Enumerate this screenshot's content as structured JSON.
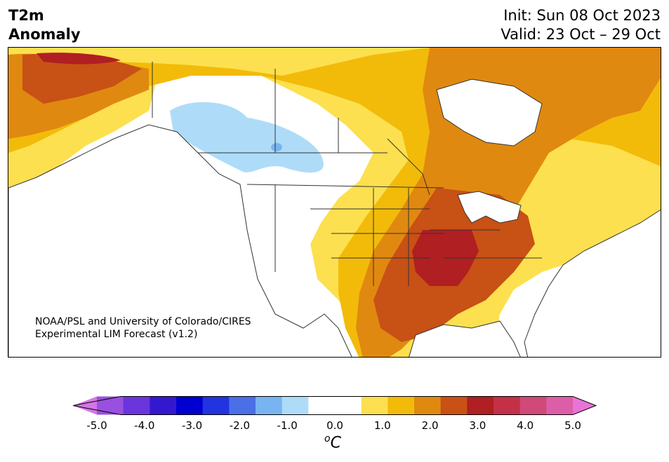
{
  "title": {
    "variable": "T2m",
    "subtitle": "Anomaly",
    "init": "Init: Sun 08 Oct 2023",
    "valid": "Valid: 23 Oct – 29 Oct"
  },
  "credit": {
    "line1": "NOAA/PSL and University of Colorado/CIRES",
    "line2": "Experimental LIM Forecast (v1.2)"
  },
  "colorbar": {
    "unit_sup": "o",
    "unit": "C",
    "ticks": [
      "-5.0",
      "-4.0",
      "-3.0",
      "-2.0",
      "-1.0",
      "0.0",
      "1.0",
      "2.0",
      "3.0",
      "4.0",
      "5.0"
    ],
    "colors": [
      "#d475e6",
      "#9a50de",
      "#6a35dc",
      "#3418d0",
      "#0000d0",
      "#2233e0",
      "#4a6fe6",
      "#78b4f2",
      "#aedcf8",
      "#ffffff",
      "#ffffff",
      "#fde04f",
      "#f2bb0a",
      "#e08910",
      "#c85115",
      "#b01f22",
      "#c33048",
      "#d04978",
      "#dc5ea8",
      "#e874d8"
    ],
    "bounds": [
      -5.0,
      5.0
    ],
    "extend": "both"
  },
  "map": {
    "region": "North America",
    "field_colors": {
      "neg1": "#aedcf8",
      "neg2": "#78b4f2",
      "pos1": "#fde04f",
      "pos2": "#f2bb0a",
      "pos3": "#e08910",
      "pos4": "#c85115",
      "pos5": "#b01f22",
      "border": "#333333"
    }
  }
}
